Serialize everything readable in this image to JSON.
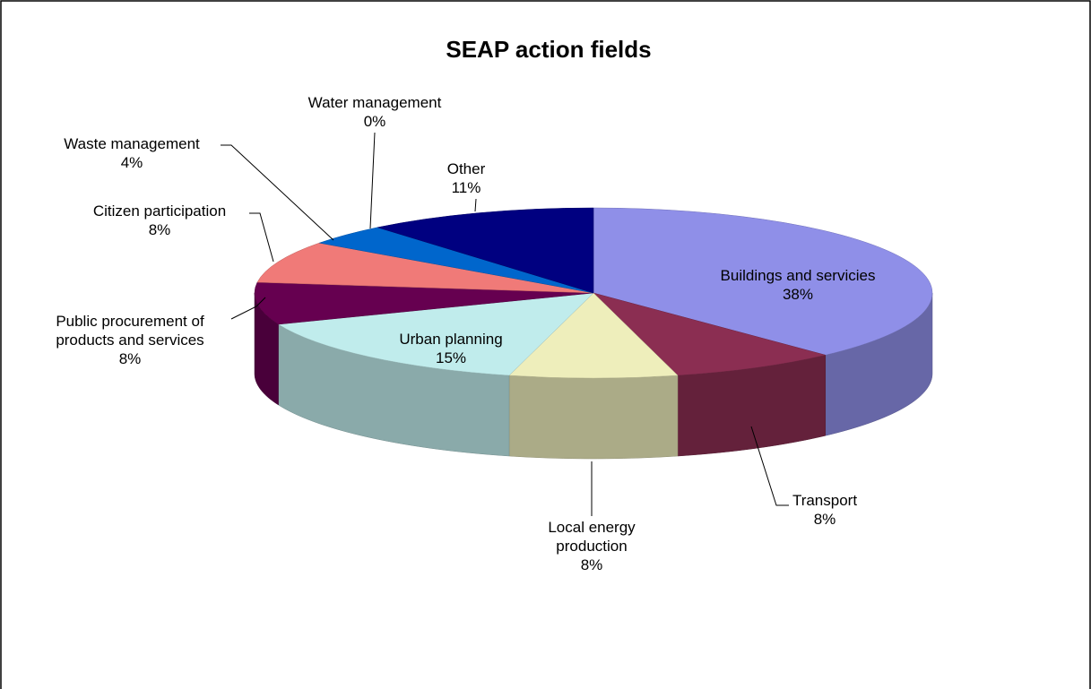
{
  "chart_data": {
    "type": "pie3d",
    "title": "SEAP action fields",
    "categories": [
      "Buildings and servicies",
      "Transport",
      "Local energy production",
      "Urban planning",
      "Public procurement of products and services",
      "Citizen participation",
      "Waste management",
      "Water management",
      "Other"
    ],
    "values": [
      38,
      8,
      8,
      15,
      8,
      8,
      4,
      0,
      11
    ],
    "value_labels": [
      "38%",
      "8%",
      "8%",
      "15%",
      "8%",
      "8%",
      "4%",
      "0%",
      "11%"
    ],
    "colors": [
      "#8f8fe8",
      "#8b2e52",
      "#eeeebb",
      "#c0ecec",
      "#660050",
      "#f07a78",
      "#0066cc",
      "#ccccff",
      "#000080"
    ]
  }
}
